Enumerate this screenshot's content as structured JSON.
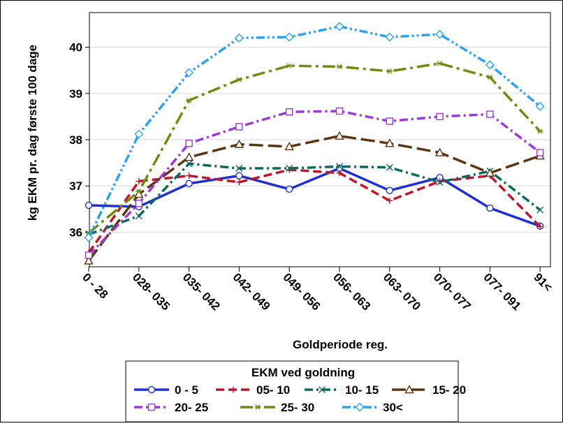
{
  "chart_data": {
    "type": "line",
    "title": "",
    "xlabel": "Goldperiode reg.",
    "ylabel": "kg EKM pr. dag første 100 dage",
    "categories": [
      "0 - 28",
      "028- 035",
      "035- 042",
      "042- 049",
      "049- 056",
      "056- 063",
      "063- 070",
      "070- 077",
      "077- 091",
      "91<"
    ],
    "y_ticks": [
      36,
      37,
      38,
      39,
      40
    ],
    "ylim": [
      35.25,
      40.75
    ],
    "grid": "horizontal",
    "legend_position": "bottom",
    "legend_title": "EKM ved goldning",
    "series": [
      {
        "name": "0 - 5",
        "color": "#1f2fd0",
        "dash": "solid",
        "marker": "circle",
        "values": [
          36.58,
          36.55,
          37.05,
          37.22,
          36.93,
          37.38,
          36.9,
          37.18,
          36.52,
          36.13
        ]
      },
      {
        "name": "05- 10",
        "color": "#c0152a",
        "dash": "dash",
        "marker": "plus",
        "values": [
          35.55,
          37.1,
          37.22,
          37.08,
          37.35,
          37.28,
          36.68,
          37.1,
          37.22,
          36.12
        ]
      },
      {
        "name": "10- 15",
        "color": "#0b6a5e",
        "dash": "dashdot",
        "marker": "x",
        "values": [
          35.95,
          36.35,
          37.48,
          37.38,
          37.38,
          37.42,
          37.4,
          37.08,
          37.32,
          36.48
        ]
      },
      {
        "name": "15- 20",
        "color": "#5b3412",
        "dash": "longdash",
        "marker": "triangle",
        "values": [
          35.38,
          36.82,
          37.62,
          37.9,
          37.85,
          38.08,
          37.92,
          37.72,
          37.28,
          37.65
        ]
      },
      {
        "name": "20- 25",
        "color": "#9b38d6",
        "dash": "dashdot",
        "marker": "square",
        "values": [
          35.5,
          36.62,
          37.92,
          38.28,
          38.6,
          38.62,
          38.4,
          38.5,
          38.55,
          37.72
        ]
      },
      {
        "name": "25- 30",
        "color": "#6f8b12",
        "dash": "longdashdot",
        "marker": "star",
        "values": [
          35.98,
          36.88,
          38.85,
          39.3,
          39.6,
          39.58,
          39.48,
          39.65,
          39.35,
          38.18
        ]
      },
      {
        "name": "30<",
        "color": "#2ba3f0",
        "dash": "dashdotdot",
        "marker": "diamond",
        "values": [
          35.88,
          38.12,
          39.45,
          40.2,
          40.22,
          40.45,
          40.22,
          40.28,
          39.62,
          38.72
        ]
      }
    ]
  }
}
